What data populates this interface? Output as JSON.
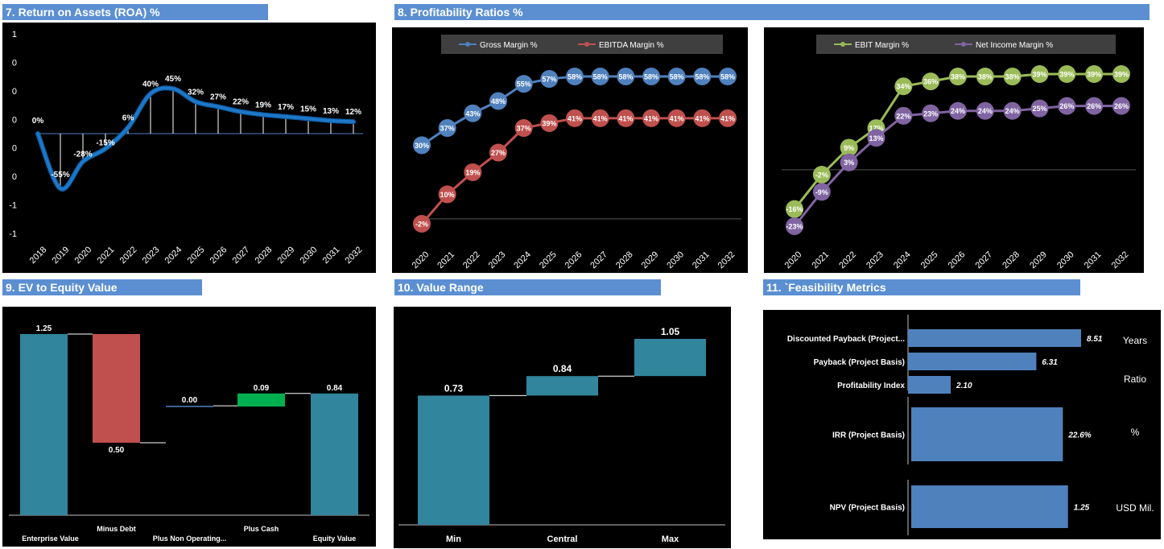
{
  "headers": {
    "roa": "7. Return on Assets (ROA) %",
    "profitability": "8. Profitability Ratios %",
    "ev_equity": "9. EV to Equity Value",
    "value_range": "10. Value Range",
    "feasibility": "11. `Feasibility Metrics"
  },
  "colors": {
    "header_bg": "#5b8fd2",
    "blue": "#4f81bd",
    "red": "#c0504d",
    "green": "#9bbb59",
    "purple": "#8064a2",
    "teal": "#31859c",
    "bright_green": "#00b050",
    "bar_blue": "#4f81bd",
    "legend_bg": "#3f3f3f"
  },
  "chart_data": [
    {
      "id": "roa",
      "type": "line",
      "title": "",
      "x": [
        "2018",
        "2019",
        "2020",
        "2021",
        "2022",
        "2023",
        "2024",
        "2025",
        "2026",
        "2027",
        "2028",
        "2029",
        "2030",
        "2031",
        "2032"
      ],
      "y_tick_labels": [
        "1",
        "0",
        "0",
        "0",
        "0",
        "0",
        "-1",
        "-1"
      ],
      "series": [
        {
          "values": [
            0,
            -55,
            -28,
            -15,
            6,
            40,
            45,
            32,
            27,
            22,
            19,
            17,
            15,
            13,
            12
          ],
          "labels": [
            "0%",
            "-55%",
            "-28%",
            "-15%",
            "6%",
            "40%",
            "45%",
            "32%",
            "27%",
            "22%",
            "19%",
            "17%",
            "15%",
            "13%",
            "12%"
          ],
          "color": "#1f77c8"
        }
      ],
      "ylim": [
        -100,
        100
      ],
      "drop_lines": true,
      "grid": false
    },
    {
      "id": "profitability_a",
      "type": "line",
      "title": "",
      "x": [
        "2020",
        "2021",
        "2022",
        "2023",
        "2024",
        "2025",
        "2026",
        "2027",
        "2028",
        "2029",
        "2030",
        "2031",
        "2032"
      ],
      "series": [
        {
          "name": "Gross Margin %",
          "color": "#4f81bd",
          "values": [
            30,
            37,
            43,
            48,
            55,
            57,
            58,
            58,
            58,
            58,
            58,
            58,
            58
          ],
          "labels": [
            "30%",
            "37%",
            "43%",
            "48%",
            "55%",
            "57%",
            "58%",
            "58%",
            "58%",
            "58%",
            "58%",
            "58%",
            "58%"
          ]
        },
        {
          "name": "EBITDA Margin %",
          "color": "#c0504d",
          "values": [
            -2,
            10,
            19,
            27,
            37,
            39,
            41,
            41,
            41,
            41,
            41,
            41,
            41
          ],
          "labels": [
            "-2%",
            "10%",
            "19%",
            "27%",
            "37%",
            "39%",
            "41%",
            "41%",
            "41%",
            "41%",
            "41%",
            "41%",
            "41%"
          ]
        }
      ],
      "legend": "top",
      "grid": false
    },
    {
      "id": "profitability_b",
      "type": "line",
      "title": "",
      "x": [
        "2020",
        "2021",
        "2022",
        "2023",
        "2024",
        "2025",
        "2026",
        "2027",
        "2028",
        "2029",
        "2030",
        "2031",
        "2032"
      ],
      "series": [
        {
          "name": "EBIT Margin %",
          "color": "#9bbb59",
          "values": [
            -16,
            -2,
            9,
            17,
            34,
            36,
            38,
            38,
            38,
            39,
            39,
            39,
            39
          ],
          "labels": [
            "-16%",
            "-2%",
            "9%",
            "17%",
            "34%",
            "36%",
            "38%",
            "38%",
            "38%",
            "39%",
            "39%",
            "39%",
            "39%"
          ]
        },
        {
          "name": "Net Income Margin %",
          "color": "#8064a2",
          "values": [
            -23,
            -9,
            3,
            13,
            22,
            23,
            24,
            24,
            24,
            25,
            26,
            26,
            26
          ],
          "labels": [
            "-23%",
            "-9%",
            "3%",
            "13%",
            "22%",
            "23%",
            "24%",
            "24%",
            "24%",
            "25%",
            "26%",
            "26%",
            "26%"
          ]
        }
      ],
      "legend": "top",
      "grid": false
    },
    {
      "id": "ev_equity",
      "type": "bar",
      "subtype": "waterfall",
      "title": "",
      "categories": [
        "Enterprise Value",
        "Minus Debt",
        "Plus Non Operating...",
        "Plus Cash",
        "Equity Value"
      ],
      "steps": [
        {
          "base": 0,
          "top": 1.25,
          "label": "1.25",
          "color": "#31859c",
          "label_pos": "above"
        },
        {
          "base": 0.5,
          "top": 1.25,
          "label": "0.50",
          "color": "#c0504d",
          "label_pos": "below"
        },
        {
          "base": 0.75,
          "top": 0.755,
          "label": "0.00",
          "color": "#4f81bd",
          "label_pos": "above"
        },
        {
          "base": 0.75,
          "top": 0.84,
          "label": "0.09",
          "color": "#00b050",
          "label_pos": "above"
        },
        {
          "base": 0,
          "top": 0.84,
          "label": "0.84",
          "color": "#31859c",
          "label_pos": "above"
        }
      ],
      "ylim": [
        0,
        1.3
      ]
    },
    {
      "id": "value_range",
      "type": "bar",
      "subtype": "floating",
      "title": "",
      "categories": [
        "Min",
        "Central",
        "Max"
      ],
      "steps": [
        {
          "base": 0,
          "top": 0.73,
          "label": "0.73"
        },
        {
          "base": 0.73,
          "top": 0.84,
          "label": "0.84"
        },
        {
          "base": 0.84,
          "top": 1.05,
          "label": "1.05"
        }
      ],
      "color": "#31859c"
    },
    {
      "id": "feasibility",
      "type": "bar",
      "orientation": "horizontal",
      "title": "",
      "groups": [
        {
          "unit": "Years",
          "bars": [
            {
              "label": "Discounted Payback  (Project...",
              "value": 8.51,
              "value_label": "8.51"
            },
            {
              "label": "Payback  (Project Basis)",
              "value": 6.31,
              "value_label": "6.31"
            }
          ],
          "max": 8.51
        },
        {
          "unit": "Ratio",
          "bars": [
            {
              "label": "Profitability Index",
              "value": 2.1,
              "value_label": "2.10"
            }
          ],
          "max": 8.51
        },
        {
          "unit": "%",
          "bars": [
            {
              "label": "IRR (Project Basis)",
              "value": 22.6,
              "value_label": "22.6%"
            }
          ],
          "max": 25.8
        },
        {
          "unit": "USD Mil.",
          "bars": [
            {
              "label": "NPV (Project Basis)",
              "value": 1.25,
              "value_label": "1.25"
            }
          ],
          "max": 1.38
        }
      ],
      "color": "#4f81bd"
    }
  ]
}
